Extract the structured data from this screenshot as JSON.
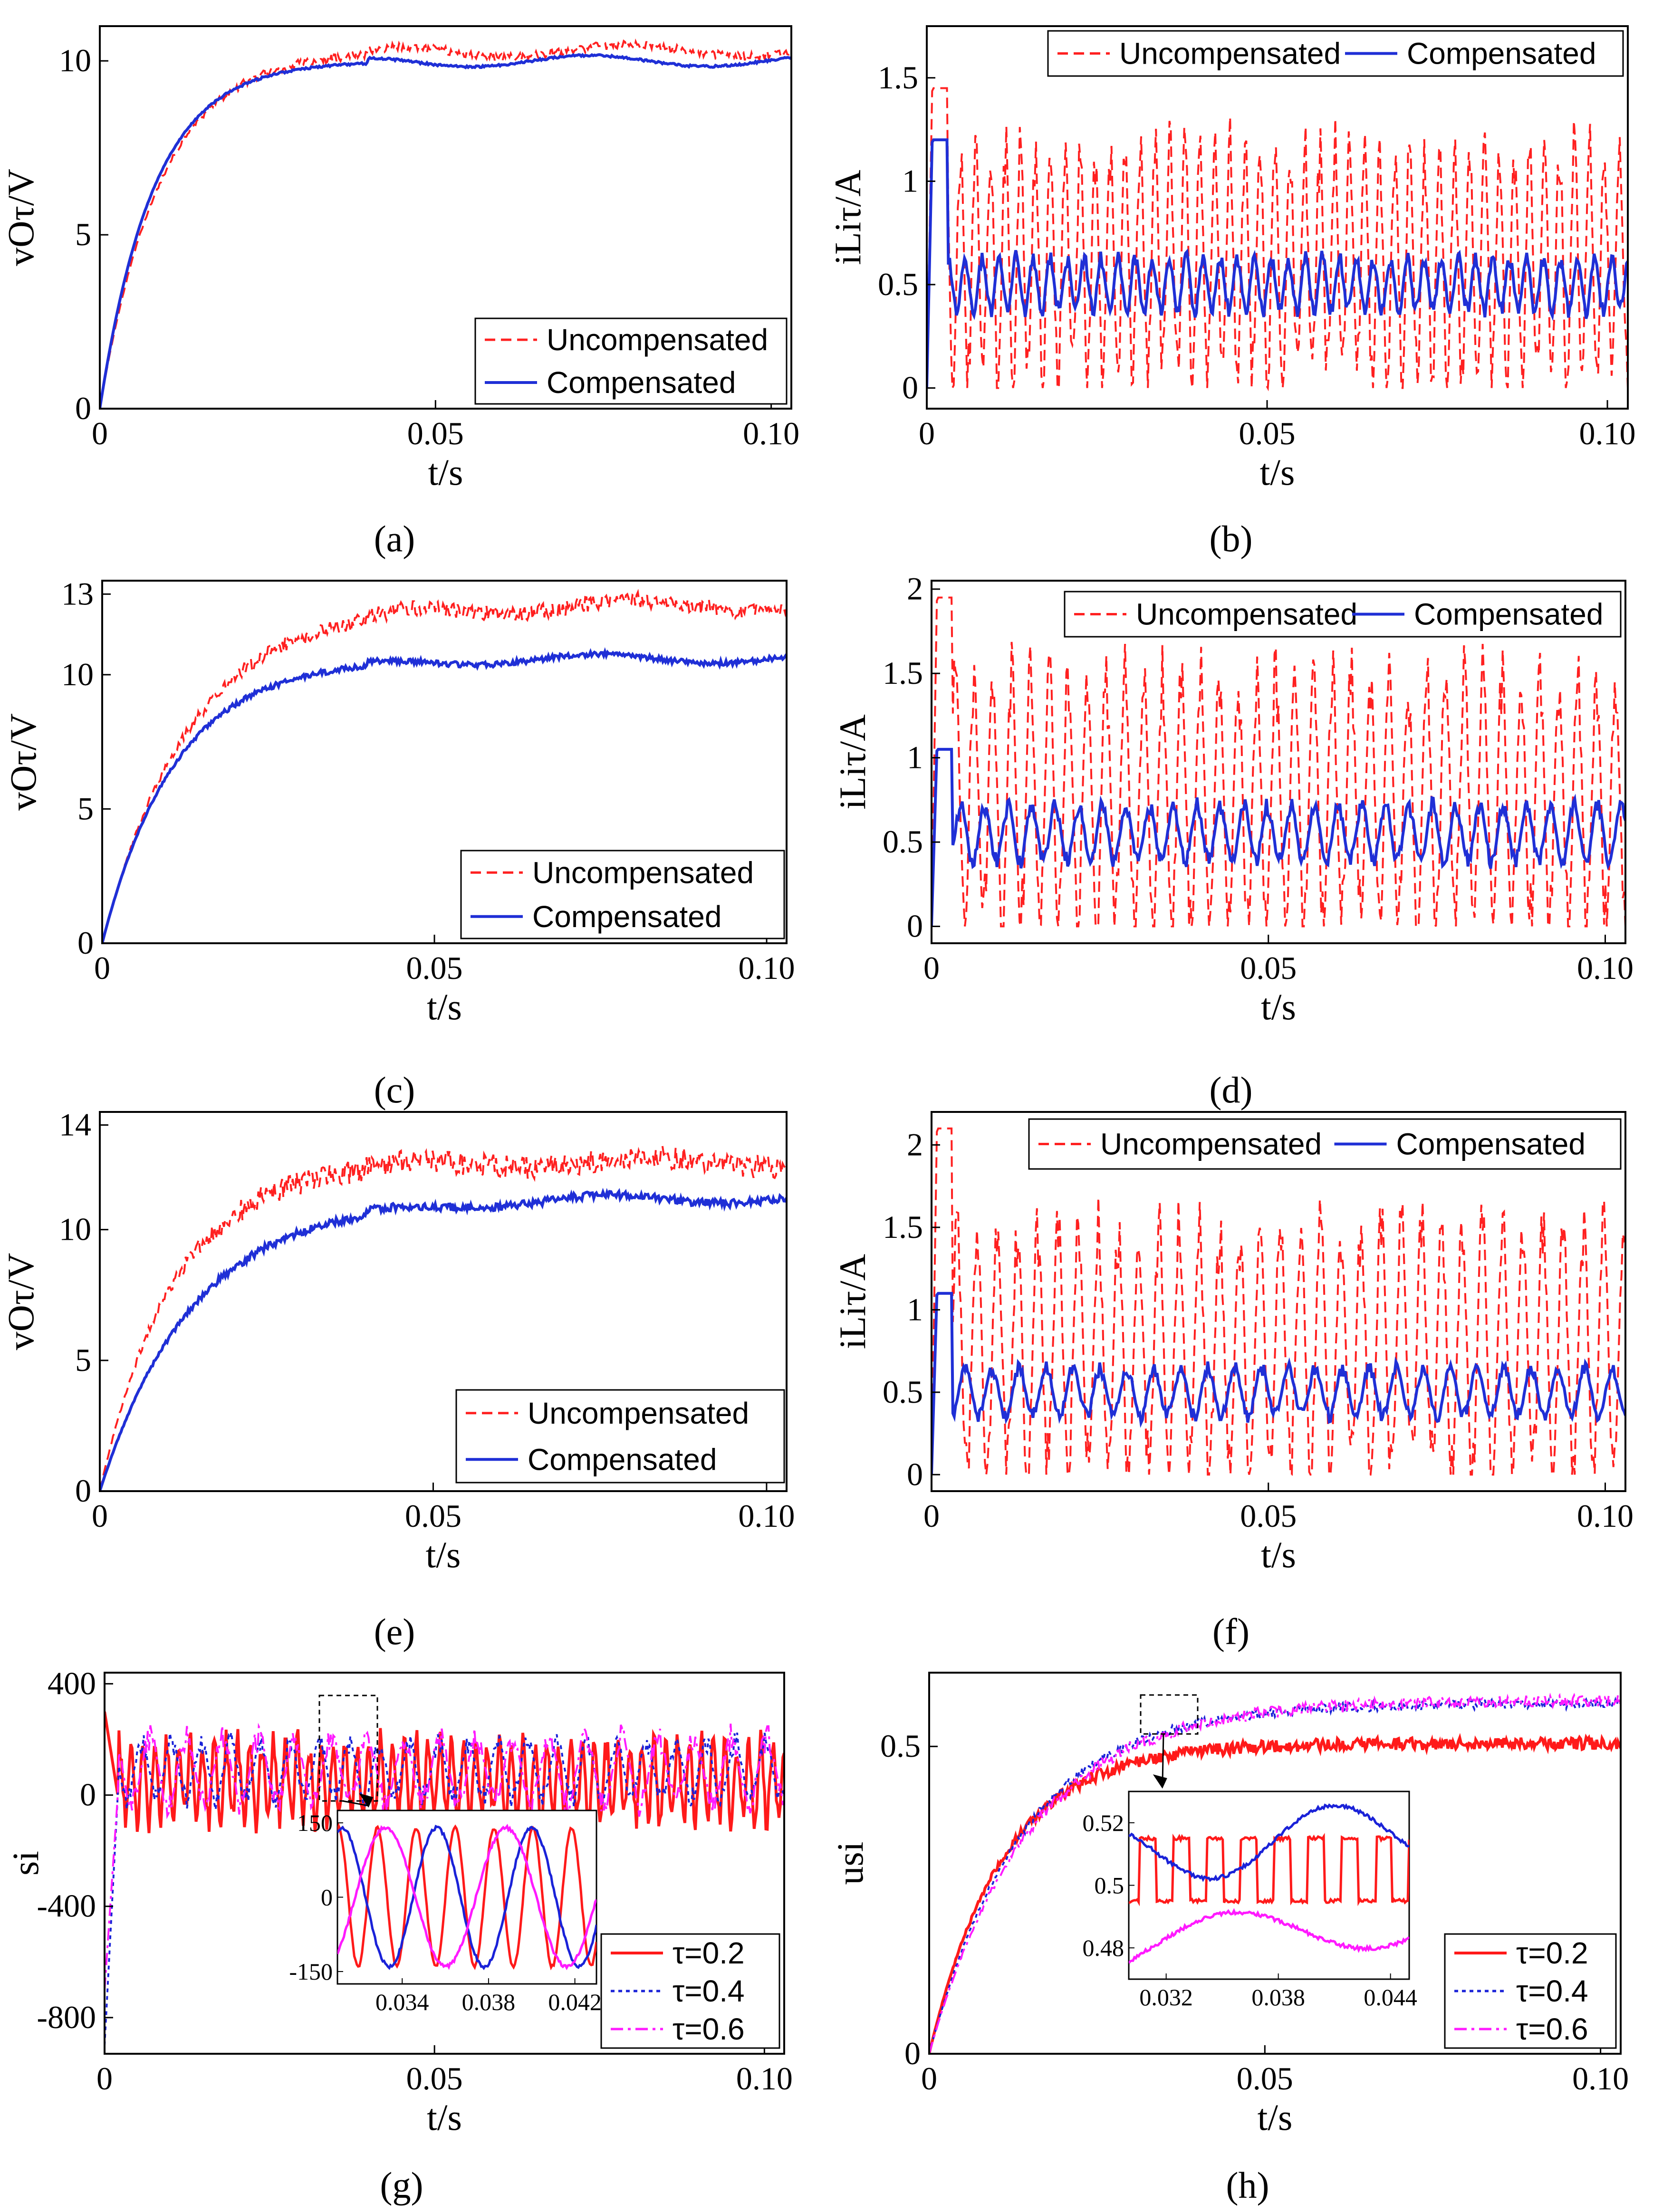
{
  "figure": {
    "captions": [
      "(a)",
      "(b)",
      "(c)",
      "(d)",
      "(e)",
      "(f)",
      "(g)",
      "(h)"
    ]
  },
  "colors": {
    "uncompensated": "#ff2020",
    "compensated": "#1f2fd6",
    "tau02": "#ff1a1a",
    "tau04": "#1a22d8",
    "tau06": "#ff1aff"
  },
  "chart_data": [
    {
      "id": "a",
      "type": "line",
      "caption": "(a)",
      "xlabel": "t/s",
      "ylabel": "vOτ/V",
      "xlim": [
        0,
        0.103
      ],
      "ylim": [
        0,
        11
      ],
      "xticks": [
        0,
        0.05,
        0.1
      ],
      "xtick_labels": [
        "0",
        "0.05",
        "0.10"
      ],
      "yticks": [
        0,
        5,
        10
      ],
      "ytick_labels": [
        "0",
        "5",
        "10"
      ],
      "legend": "bottom-right",
      "series": [
        {
          "name": "Uncompensated",
          "style": "dashed",
          "shape": "rise",
          "final": 10.3,
          "tau": 0.009,
          "noise": 0.12
        },
        {
          "name": "Compensated",
          "style": "solid",
          "shape": "rise",
          "final": 10.0,
          "tau": 0.008,
          "noise": 0.03
        }
      ]
    },
    {
      "id": "b",
      "type": "line",
      "caption": "(b)",
      "xlabel": "t/s",
      "ylabel": "iLiτ/A",
      "xlim": [
        0,
        0.103
      ],
      "ylim": [
        -0.1,
        1.75
      ],
      "xticks": [
        0,
        0.05,
        0.1
      ],
      "xtick_labels": [
        "0",
        "0.05",
        "0.10"
      ],
      "yticks": [
        0,
        0.5,
        1,
        1.5
      ],
      "ytick_labels": [
        "0",
        "0.5",
        "1",
        "1.5"
      ],
      "legend": "top",
      "series": [
        {
          "name": "Uncompensated",
          "style": "dashed",
          "shape": "osc",
          "mean": 0.6,
          "amp": 0.6,
          "period": 0.0022,
          "spike": 1.45
        },
        {
          "name": "Compensated",
          "style": "solid",
          "shape": "osc",
          "mean": 0.5,
          "amp": 0.14,
          "period": 0.0025,
          "spike": 1.2
        }
      ]
    },
    {
      "id": "c",
      "type": "line",
      "caption": "(c)",
      "xlabel": "t/s",
      "ylabel": "vOτ/V",
      "xlim": [
        0,
        0.103
      ],
      "ylim": [
        0,
        13.5
      ],
      "xticks": [
        0,
        0.05,
        0.1
      ],
      "xtick_labels": [
        "0",
        "0.05",
        "0.10"
      ],
      "yticks": [
        0,
        5,
        10,
        13
      ],
      "ytick_labels": [
        "0",
        "5",
        "10",
        "13"
      ],
      "legend": "bottom-right",
      "series": [
        {
          "name": "Uncompensated",
          "style": "dashed",
          "shape": "rise",
          "final": 12.6,
          "tau": 0.013,
          "noise": 0.3
        },
        {
          "name": "Compensated",
          "style": "solid",
          "shape": "rise",
          "final": 10.6,
          "tau": 0.011,
          "noise": 0.1
        }
      ]
    },
    {
      "id": "d",
      "type": "line",
      "caption": "(d)",
      "xlabel": "t/s",
      "ylabel": "iLiτ/A",
      "xlim": [
        0,
        0.103
      ],
      "ylim": [
        -0.1,
        2.05
      ],
      "xticks": [
        0,
        0.05,
        0.1
      ],
      "xtick_labels": [
        "0",
        "0.05",
        "0.10"
      ],
      "yticks": [
        0,
        0.5,
        1,
        1.5,
        2
      ],
      "ytick_labels": [
        "0",
        "0.5",
        "1",
        "1.5",
        "2"
      ],
      "legend": "top",
      "series": [
        {
          "name": "Uncompensated",
          "style": "dashed",
          "shape": "osc",
          "mean": 0.75,
          "amp": 0.8,
          "period": 0.0028,
          "spike": 1.95
        },
        {
          "name": "Compensated",
          "style": "solid",
          "shape": "osc",
          "mean": 0.55,
          "amp": 0.18,
          "period": 0.0035,
          "spike": 1.05
        }
      ]
    },
    {
      "id": "e",
      "type": "line",
      "caption": "(e)",
      "xlabel": "t/s",
      "ylabel": "vOτ/V",
      "xlim": [
        0,
        0.103
      ],
      "ylim": [
        0,
        14.5
      ],
      "xticks": [
        0,
        0.05,
        0.1
      ],
      "xtick_labels": [
        "0",
        "0.05",
        "0.10"
      ],
      "yticks": [
        0,
        5,
        10,
        14
      ],
      "ytick_labels": [
        "0",
        "5",
        "10",
        "14"
      ],
      "legend": "bottom-right",
      "series": [
        {
          "name": "Uncompensated",
          "style": "dashed",
          "shape": "rise",
          "final": 12.6,
          "tau": 0.011,
          "noise": 0.45
        },
        {
          "name": "Compensated",
          "style": "solid",
          "shape": "rise",
          "final": 11.2,
          "tau": 0.014,
          "noise": 0.15
        }
      ]
    },
    {
      "id": "f",
      "type": "line",
      "caption": "(f)",
      "xlabel": "t/s",
      "ylabel": "iLiτ/A",
      "xlim": [
        0,
        0.103
      ],
      "ylim": [
        -0.1,
        2.2
      ],
      "xticks": [
        0,
        0.05,
        0.1
      ],
      "xtick_labels": [
        "0",
        "0.05",
        "0.10"
      ],
      "yticks": [
        0,
        0.5,
        1,
        1.5,
        2
      ],
      "ytick_labels": [
        "0",
        "0.5",
        "1",
        "1.5",
        "2"
      ],
      "legend": "top",
      "series": [
        {
          "name": "Uncompensated",
          "style": "dashed",
          "shape": "osc",
          "mean": 0.75,
          "amp": 0.8,
          "period": 0.003,
          "spike": 2.1
        },
        {
          "name": "Compensated",
          "style": "solid",
          "shape": "osc",
          "mean": 0.5,
          "amp": 0.16,
          "period": 0.004,
          "spike": 1.1
        }
      ]
    },
    {
      "id": "g",
      "type": "line",
      "caption": "(g)",
      "xlabel": "t/s",
      "ylabel": "si",
      "xlim": [
        0,
        0.103
      ],
      "ylim": [
        -930,
        440
      ],
      "xticks": [
        0,
        0.05,
        0.1
      ],
      "xtick_labels": [
        "0",
        "0.05",
        "0.10"
      ],
      "yticks": [
        -800,
        -400,
        0,
        400
      ],
      "ytick_labels": [
        "-800",
        "-400",
        "0",
        "400"
      ],
      "legend": "bottom-right",
      "series": [
        {
          "name": "τ=0.2",
          "style": "solid",
          "shape": "sosc",
          "mean": 50,
          "amp": 150,
          "period": 0.0018,
          "start": 300
        },
        {
          "name": "τ=0.4",
          "style": "dotted",
          "shape": "sosc",
          "mean": 90,
          "amp": 110,
          "period": 0.0045,
          "start": -900
        },
        {
          "name": "τ=0.6",
          "style": "dashdot",
          "shape": "sosc",
          "mean": 90,
          "amp": 130,
          "period": 0.0055,
          "start": -700
        }
      ],
      "inset": {
        "xlim": [
          0.031,
          0.043
        ],
        "ylim": [
          -175,
          175
        ],
        "xticks": [
          0.034,
          0.038,
          0.042
        ],
        "xtick_labels": [
          "0.034",
          "0.038",
          "0.042"
        ],
        "yticks": [
          -150,
          0,
          150
        ],
        "ytick_labels": [
          "-150",
          "0",
          "150"
        ]
      }
    },
    {
      "id": "h",
      "type": "line",
      "caption": "(h)",
      "xlabel": "t/s",
      "ylabel": "usi",
      "xlim": [
        0,
        0.103
      ],
      "ylim": [
        0,
        0.62
      ],
      "xticks": [
        0,
        0.05,
        0.1
      ],
      "xtick_labels": [
        "0",
        "0.05",
        "0.10"
      ],
      "yticks": [
        0,
        0.5
      ],
      "ytick_labels": [
        "0",
        "0.5"
      ],
      "legend": "bottom-right",
      "series": [
        {
          "name": "τ=0.2",
          "style": "solid",
          "shape": "rise",
          "final": 0.505,
          "tau": 0.011,
          "noise": 0.01
        },
        {
          "name": "τ=0.4",
          "style": "dotted",
          "shape": "rise",
          "final": 0.57,
          "tau": 0.014,
          "noise": 0.008
        },
        {
          "name": "τ=0.6",
          "style": "dashdot",
          "shape": "rise",
          "final": 0.575,
          "tau": 0.015,
          "noise": 0.01
        }
      ],
      "inset": {
        "xlim": [
          0.03,
          0.045
        ],
        "ylim": [
          0.47,
          0.53
        ],
        "xticks": [
          0.032,
          0.038,
          0.044
        ],
        "xtick_labels": [
          "0.032",
          "0.038",
          "0.044"
        ],
        "yticks": [
          0.48,
          0.5,
          0.52
        ],
        "ytick_labels": [
          "0.48",
          "0.5",
          "0.52"
        ]
      }
    }
  ]
}
